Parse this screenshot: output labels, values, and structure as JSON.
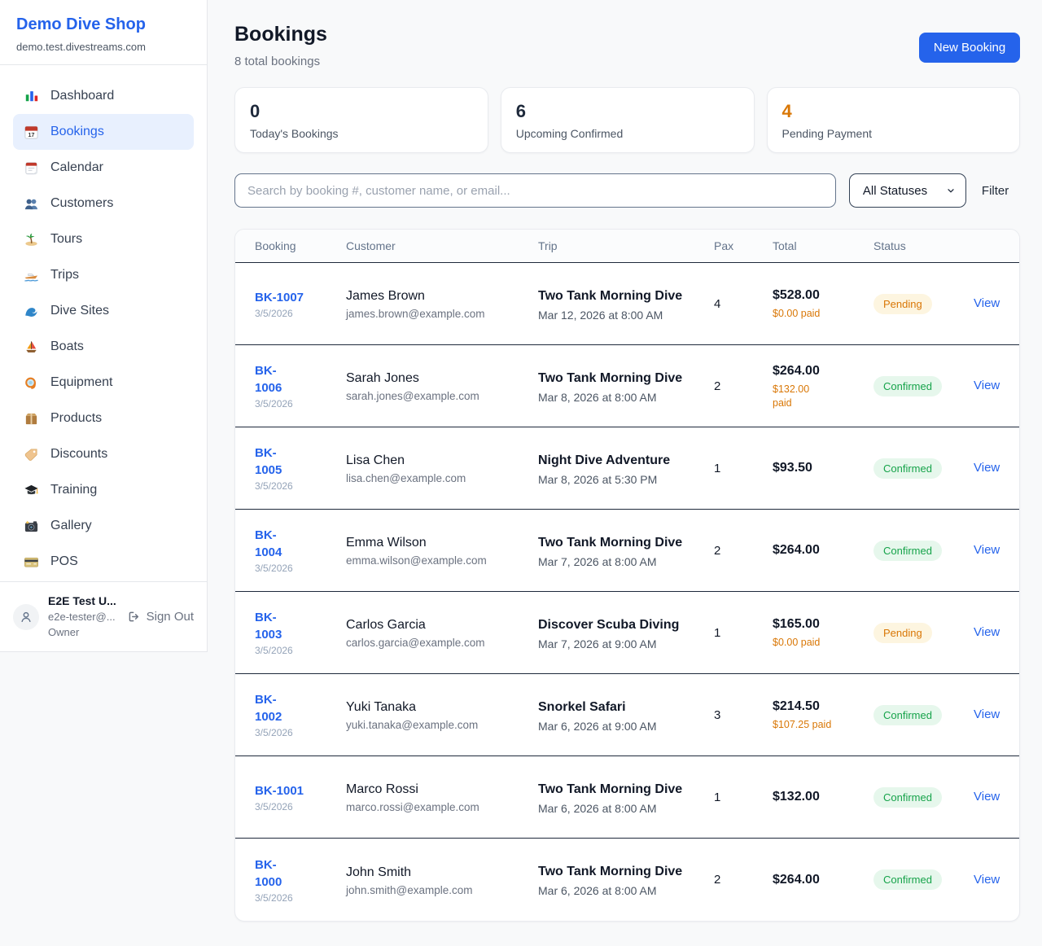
{
  "app": {
    "name": "Demo Dive Shop",
    "domain": "demo.test.divestreams.com"
  },
  "sidebar": {
    "items": [
      {
        "label": "Dashboard",
        "icon": "bar-chart",
        "active": false
      },
      {
        "label": "Bookings",
        "icon": "calendar-date",
        "active": true
      },
      {
        "label": "Calendar",
        "icon": "tear-calendar",
        "active": false
      },
      {
        "label": "Customers",
        "icon": "users",
        "active": false
      },
      {
        "label": "Tours",
        "icon": "island",
        "active": false
      },
      {
        "label": "Trips",
        "icon": "speedboat",
        "active": false
      },
      {
        "label": "Dive Sites",
        "icon": "wave",
        "active": false
      },
      {
        "label": "Boats",
        "icon": "sailboat",
        "active": false
      },
      {
        "label": "Equipment",
        "icon": "diving-mask",
        "active": false
      },
      {
        "label": "Products",
        "icon": "package",
        "active": false
      },
      {
        "label": "Discounts",
        "icon": "price-tag",
        "active": false
      },
      {
        "label": "Training",
        "icon": "graduation-cap",
        "active": false
      },
      {
        "label": "Gallery",
        "icon": "camera",
        "active": false
      },
      {
        "label": "POS",
        "icon": "credit-card",
        "active": false
      }
    ],
    "user": {
      "name": "E2E Test U...",
      "email": "e2e-tester@...",
      "role": "Owner",
      "sign_out": "Sign Out"
    }
  },
  "header": {
    "title": "Bookings",
    "subtitle": "8 total bookings",
    "new_booking_label": "New Booking"
  },
  "stats": [
    {
      "value": "0",
      "label": "Today's Bookings",
      "color": "#1e293b"
    },
    {
      "value": "6",
      "label": "Upcoming Confirmed",
      "color": "#1e293b"
    },
    {
      "value": "4",
      "label": "Pending Payment",
      "color": "#d97706"
    }
  ],
  "filters": {
    "search_placeholder": "Search by booking #, customer name, or email...",
    "status_selected": "All Statuses",
    "filter_label": "Filter"
  },
  "table": {
    "columns": [
      "Booking",
      "Customer",
      "Trip",
      "Pax",
      "Total",
      "Status"
    ],
    "view_label": "View",
    "rows": [
      {
        "number": "BK-1007",
        "number_two_line": false,
        "date": "3/5/2026",
        "customer": "James Brown",
        "email": "james.brown@example.com",
        "trip": "Two Tank Morning Dive",
        "trip_datetime": "Mar 12, 2026 at 8:00 AM",
        "pax": "4",
        "total": "$528.00",
        "paid": "$0.00 paid",
        "paid_two_line": false,
        "status": "Pending"
      },
      {
        "number": "BK-1006",
        "number_two_line": true,
        "date": "3/5/2026",
        "customer": "Sarah Jones",
        "email": "sarah.jones@example.com",
        "trip": "Two Tank Morning Dive",
        "trip_datetime": "Mar 8, 2026 at 8:00 AM",
        "pax": "2",
        "total": "$264.00",
        "paid": "$132.00 paid",
        "paid_two_line": true,
        "status": "Confirmed"
      },
      {
        "number": "BK-1005",
        "number_two_line": true,
        "date": "3/5/2026",
        "customer": "Lisa Chen",
        "email": "lisa.chen@example.com",
        "trip": "Night Dive Adventure",
        "trip_datetime": "Mar 8, 2026 at 5:30 PM",
        "pax": "1",
        "total": "$93.50",
        "paid": null,
        "paid_two_line": false,
        "status": "Confirmed"
      },
      {
        "number": "BK-1004",
        "number_two_line": true,
        "date": "3/5/2026",
        "customer": "Emma Wilson",
        "email": "emma.wilson@example.com",
        "trip": "Two Tank Morning Dive",
        "trip_datetime": "Mar 7, 2026 at 8:00 AM",
        "pax": "2",
        "total": "$264.00",
        "paid": null,
        "paid_two_line": false,
        "status": "Confirmed"
      },
      {
        "number": "BK-1003",
        "number_two_line": true,
        "date": "3/5/2026",
        "customer": "Carlos Garcia",
        "email": "carlos.garcia@example.com",
        "trip": "Discover Scuba Diving",
        "trip_datetime": "Mar 7, 2026 at 9:00 AM",
        "pax": "1",
        "total": "$165.00",
        "paid": "$0.00 paid",
        "paid_two_line": false,
        "status": "Pending"
      },
      {
        "number": "BK-1002",
        "number_two_line": true,
        "date": "3/5/2026",
        "customer": "Yuki Tanaka",
        "email": "yuki.tanaka@example.com",
        "trip": "Snorkel Safari",
        "trip_datetime": "Mar 6, 2026 at 9:00 AM",
        "pax": "3",
        "total": "$214.50",
        "paid": "$107.25 paid",
        "paid_two_line": false,
        "status": "Confirmed"
      },
      {
        "number": "BK-1001",
        "number_two_line": false,
        "date": "3/5/2026",
        "customer": "Marco Rossi",
        "email": "marco.rossi@example.com",
        "trip": "Two Tank Morning Dive",
        "trip_datetime": "Mar 6, 2026 at 8:00 AM",
        "pax": "1",
        "total": "$132.00",
        "paid": null,
        "paid_two_line": false,
        "status": "Confirmed"
      },
      {
        "number": "BK-1000",
        "number_two_line": true,
        "date": "3/5/2026",
        "customer": "John Smith",
        "email": "john.smith@example.com",
        "trip": "Two Tank Morning Dive",
        "trip_datetime": "Mar 6, 2026 at 8:00 AM",
        "pax": "2",
        "total": "$264.00",
        "paid": null,
        "paid_two_line": false,
        "status": "Confirmed"
      }
    ]
  },
  "colors": {
    "accent_blue": "#2563eb",
    "pending_text": "#d97706",
    "pending_bg": "#fdf5e0",
    "confirmed_text": "#16a34a",
    "confirmed_bg": "#e6f7ec",
    "active_nav_bg": "#e8f0fe",
    "page_bg": "#f8f9fa"
  }
}
